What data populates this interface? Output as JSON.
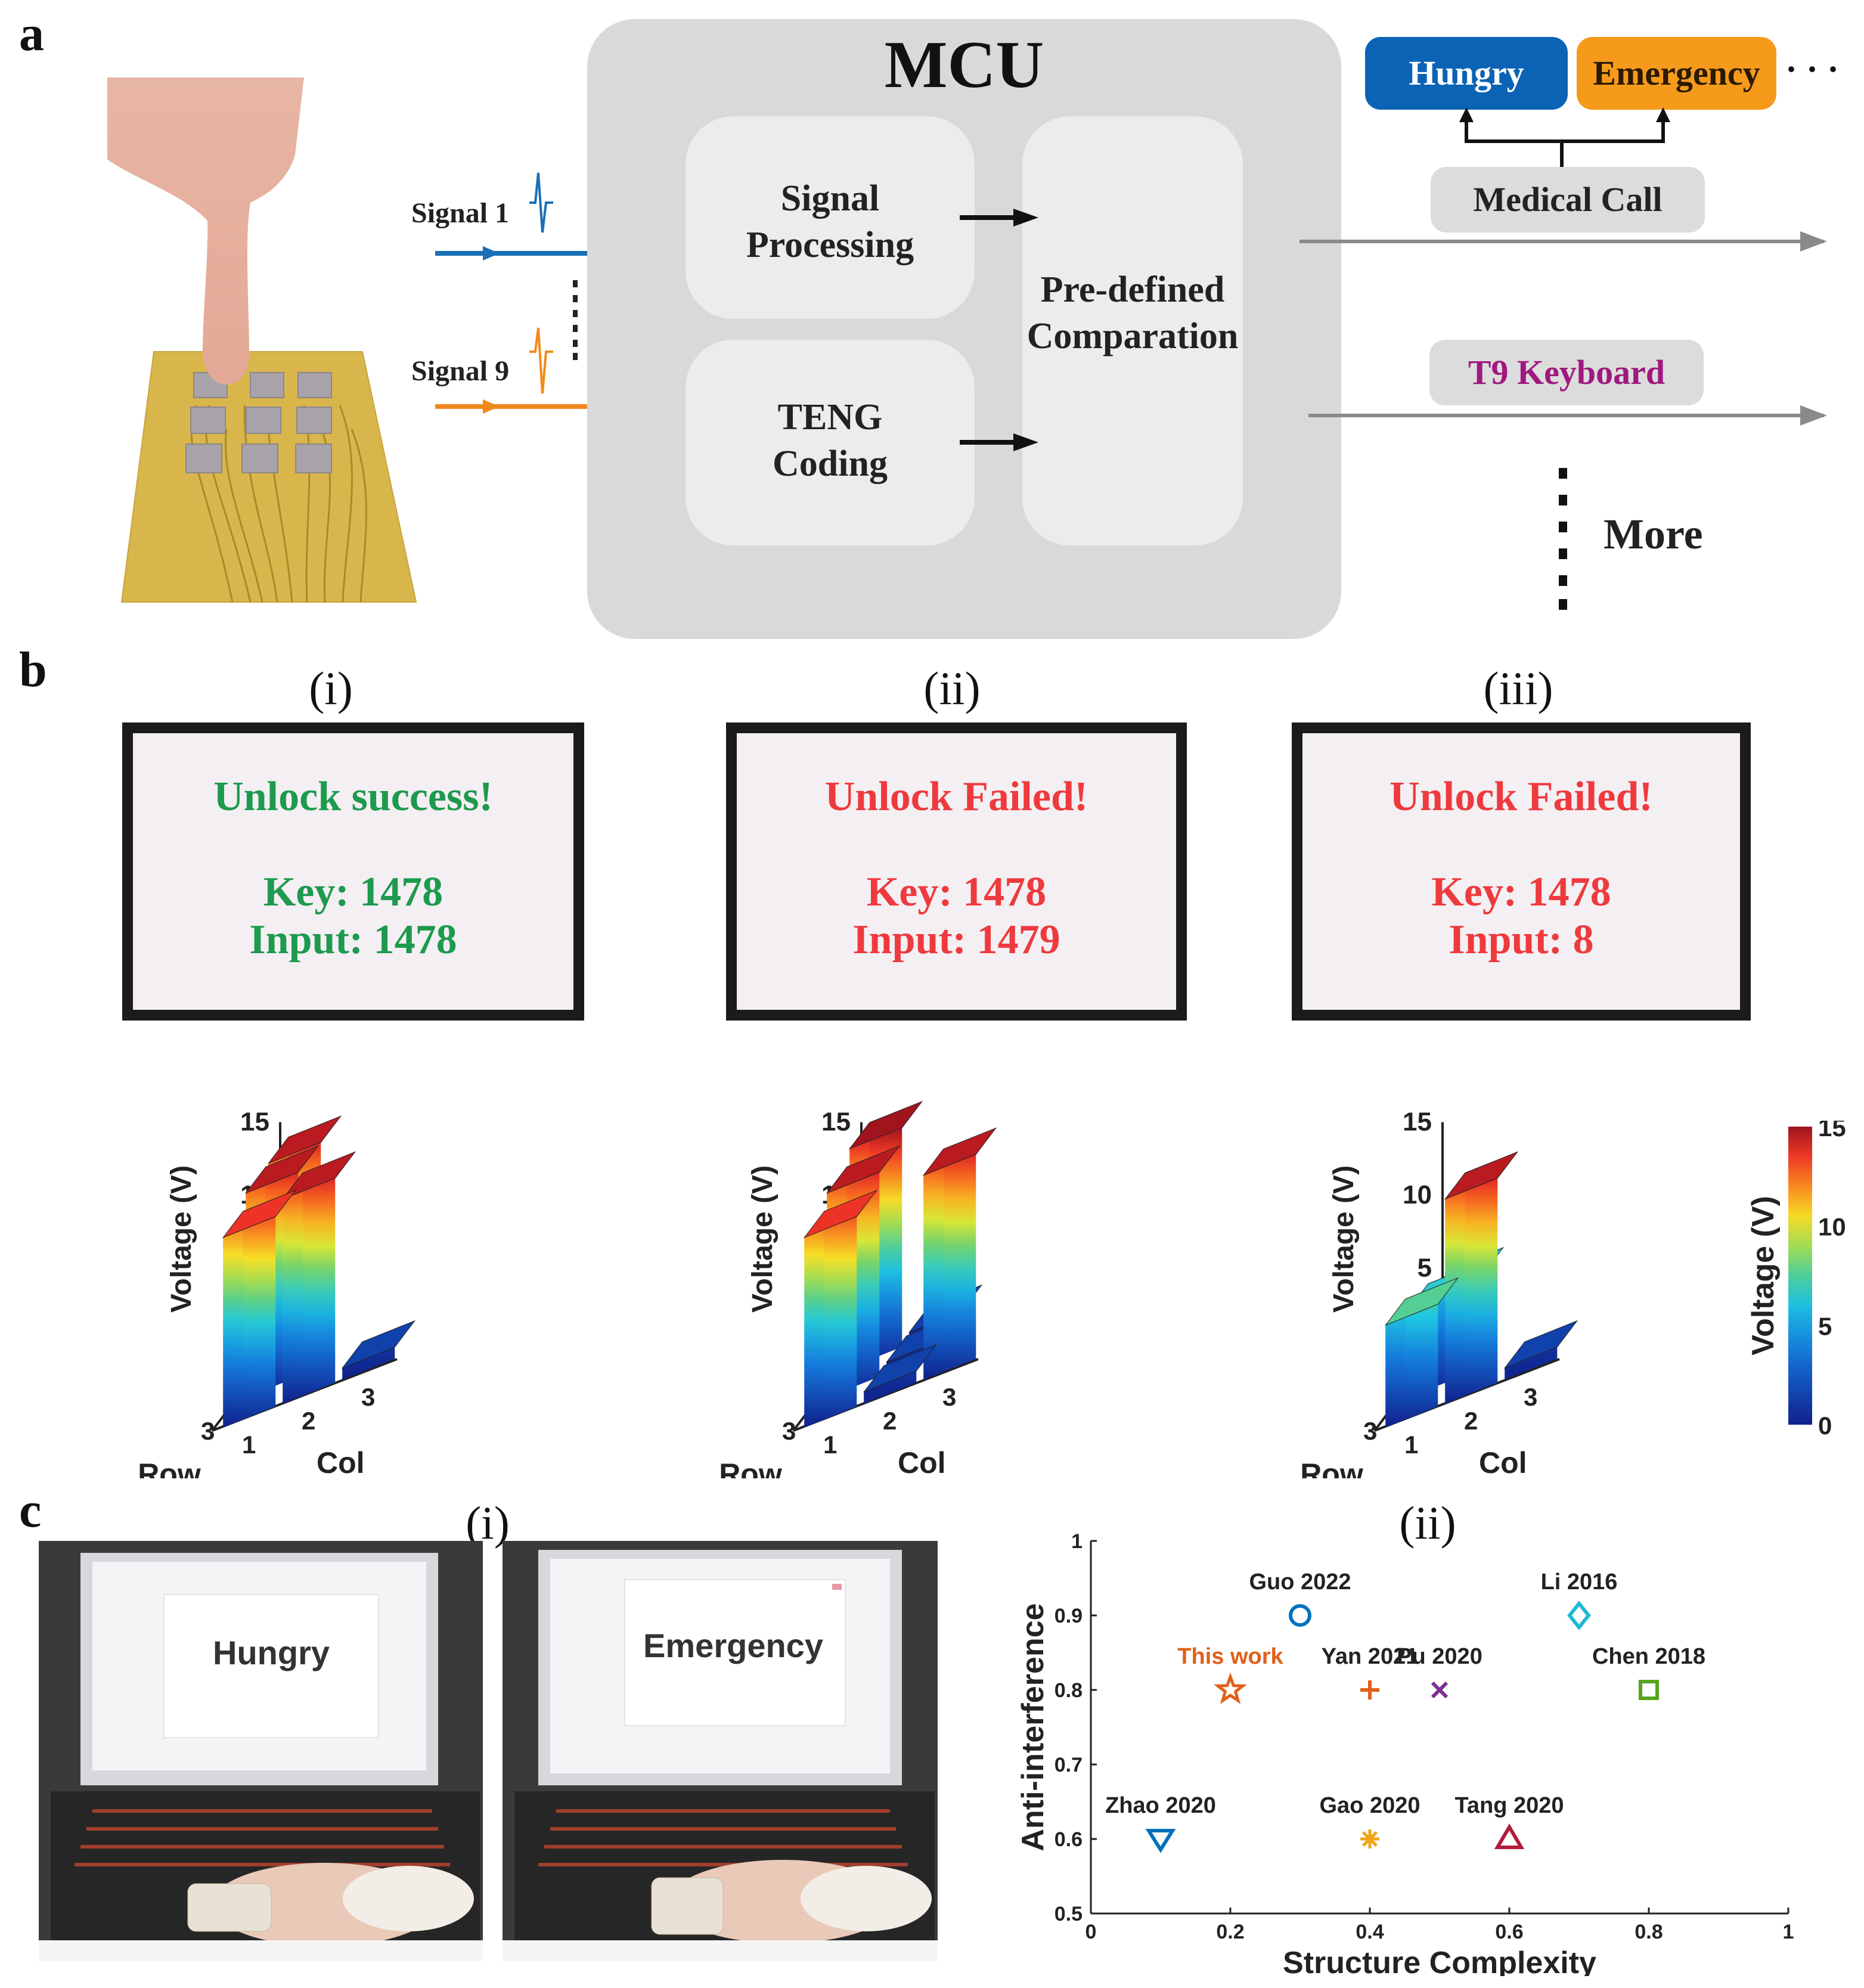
{
  "panels": {
    "a": "a",
    "b": "b",
    "c": "c"
  },
  "panel_a": {
    "signal1": "Signal 1",
    "signal9": "Signal 9",
    "mcu_title": "MCU",
    "signal_processing": [
      "Signal",
      "Processing"
    ],
    "teng_coding": [
      "TENG",
      "Coding"
    ],
    "comparation": [
      "Pre-defined",
      "Comparation"
    ],
    "hungry": "Hungry",
    "emergency": "Emergency",
    "ellipsis": "· · ·",
    "medical_call": "Medical Call",
    "t9_keyboard": "T9 Keyboard",
    "more": "More",
    "colors": {
      "signal1": "#1a6fb5",
      "signal9": "#f08a1c",
      "hungry": "#0b63b5",
      "emergency": "#f59a1b",
      "t9": "#a0187f"
    }
  },
  "panel_b": {
    "labels": [
      "(i)",
      "(ii)",
      "(iii)"
    ],
    "screens": [
      {
        "title": "Unlock success!",
        "key": "Key: 1478",
        "input": "Input: 1478",
        "color": "#1d9a4e"
      },
      {
        "title": "Unlock Failed!",
        "key": "Key: 1478",
        "input": "Input: 1479",
        "color": "#ee3a3e"
      },
      {
        "title": "Unlock Failed!",
        "key": "Key: 1478",
        "input": "Input: 8",
        "color": "#ee3a3e"
      }
    ],
    "axis": {
      "zlabel": "Voltage (V)",
      "row": "Row",
      "col": "Col",
      "zticks": [
        "0",
        "5",
        "10",
        "15"
      ],
      "idx": [
        "1",
        "2",
        "3"
      ]
    },
    "colorbar": {
      "label": "Voltage (V)",
      "ticks": [
        "15",
        "10",
        "5",
        "0"
      ]
    }
  },
  "panel_c": {
    "label_i": "(i)",
    "label_ii": "(ii)",
    "photo_texts": [
      "Hungry",
      "Emergency"
    ]
  },
  "chart_data": [
    {
      "type": "bar",
      "subtype": "3d-bar",
      "panel": "b(i)",
      "rows": [
        "1",
        "2",
        "3"
      ],
      "cols": [
        "1",
        "2",
        "3"
      ],
      "values": [
        [
          14,
          0,
          0
        ],
        [
          14,
          0,
          0
        ],
        [
          13,
          14,
          0.8
        ]
      ],
      "zlabel": "Voltage (V)",
      "xlabel": "Row",
      "ylabel": "Col",
      "zlim": [
        0,
        15
      ]
    },
    {
      "type": "bar",
      "subtype": "3d-bar",
      "panel": "b(ii)",
      "rows": [
        "1",
        "2",
        "3"
      ],
      "cols": [
        "1",
        "2",
        "3"
      ],
      "values": [
        [
          15,
          0.8,
          0
        ],
        [
          14,
          0.8,
          0
        ],
        [
          13,
          0.8,
          14
        ]
      ],
      "zlabel": "Voltage (V)",
      "xlabel": "Row",
      "ylabel": "Col",
      "zlim": [
        0,
        15
      ]
    },
    {
      "type": "bar",
      "subtype": "3d-bar",
      "panel": "b(iii)",
      "rows": [
        "1",
        "2",
        "3"
      ],
      "cols": [
        "1",
        "2",
        "3"
      ],
      "values": [
        [
          5,
          0,
          0
        ],
        [
          6,
          0,
          0
        ],
        [
          7,
          14,
          0.8
        ]
      ],
      "zlabel": "Voltage (V)",
      "xlabel": "Row",
      "ylabel": "Col",
      "zlim": [
        0,
        15
      ]
    },
    {
      "type": "scatter",
      "panel": "c(ii)",
      "xlabel": "Structure Complexity",
      "ylabel": "Anti-interference",
      "xlim": [
        0,
        1
      ],
      "ylim": [
        0.5,
        1
      ],
      "xticks": [
        "0",
        "0.2",
        "0.4",
        "0.6",
        "0.8",
        "1"
      ],
      "yticks": [
        "0.5",
        "0.6",
        "0.7",
        "0.8",
        "0.9",
        "1"
      ],
      "points": [
        {
          "label": "Guo 2022",
          "x": 0.3,
          "y": 0.9,
          "marker": "circle",
          "color": "#0072bd"
        },
        {
          "label": "Li 2016",
          "x": 0.7,
          "y": 0.9,
          "marker": "diamond",
          "color": "#1fb8d6"
        },
        {
          "label": "This work",
          "x": 0.2,
          "y": 0.8,
          "marker": "star",
          "color": "#e0601a"
        },
        {
          "label": "Yan 2021",
          "x": 0.4,
          "y": 0.8,
          "marker": "plus",
          "color": "#e0601a"
        },
        {
          "label": "Pu 2020",
          "x": 0.5,
          "y": 0.8,
          "marker": "x",
          "color": "#7e2f8e"
        },
        {
          "label": "Chen 2018",
          "x": 0.8,
          "y": 0.8,
          "marker": "square",
          "color": "#56a51f"
        },
        {
          "label": "Zhao 2020",
          "x": 0.1,
          "y": 0.6,
          "marker": "triangle-down",
          "color": "#0072bd"
        },
        {
          "label": "Gao 2020",
          "x": 0.4,
          "y": 0.6,
          "marker": "asterisk",
          "color": "#f0a418"
        },
        {
          "label": "Tang 2020",
          "x": 0.6,
          "y": 0.6,
          "marker": "triangle-up",
          "color": "#b31b3c"
        }
      ],
      "highlight_label_color": "#e0601a"
    }
  ]
}
